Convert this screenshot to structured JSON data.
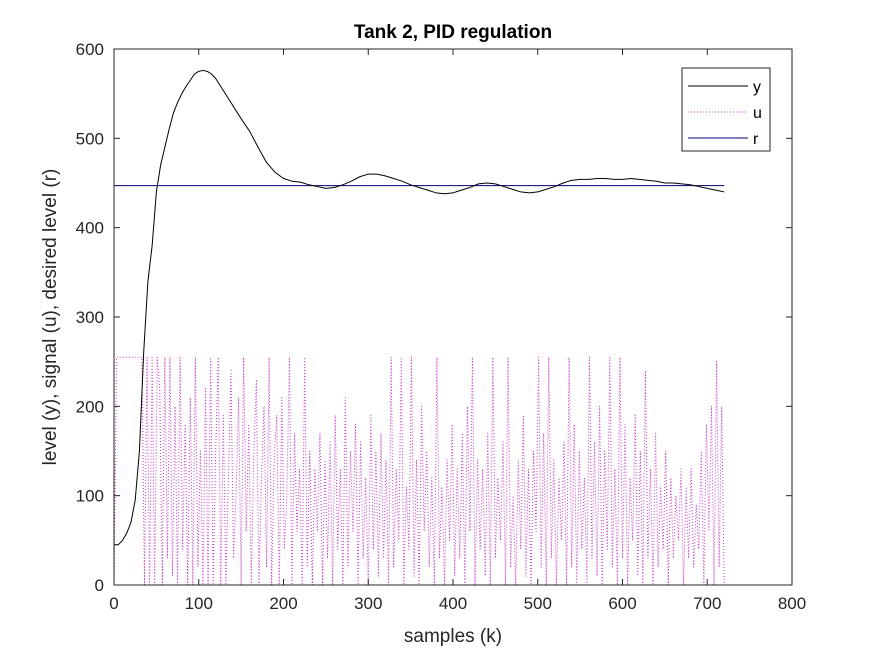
{
  "chart_data": {
    "type": "line",
    "title": "Tank 2, PID regulation",
    "xlabel": "samples (k)",
    "ylabel": "level (y), signal (u), desired level (r)",
    "xlim": [
      0,
      800
    ],
    "ylim": [
      0,
      600
    ],
    "xticks": [
      "0",
      "100",
      "200",
      "300",
      "400",
      "500",
      "600",
      "700",
      "800"
    ],
    "yticks": [
      "0",
      "100",
      "200",
      "300",
      "400",
      "500",
      "600"
    ],
    "grid": false,
    "legend_position": "top-right",
    "series": [
      {
        "name": "y",
        "color": "#000000",
        "style": "solid",
        "x": [
          0,
          5,
          10,
          15,
          20,
          25,
          30,
          35,
          40,
          45,
          50,
          55,
          60,
          65,
          70,
          75,
          80,
          85,
          90,
          95,
          100,
          105,
          110,
          115,
          120,
          130,
          140,
          150,
          160,
          170,
          180,
          190,
          200,
          210,
          220,
          230,
          240,
          250,
          260,
          270,
          280,
          290,
          300,
          310,
          320,
          330,
          340,
          350,
          360,
          370,
          380,
          390,
          400,
          410,
          420,
          430,
          440,
          450,
          460,
          470,
          480,
          490,
          500,
          510,
          520,
          530,
          540,
          550,
          560,
          570,
          580,
          590,
          600,
          610,
          620,
          630,
          640,
          650,
          660,
          670,
          680,
          690,
          700,
          710,
          720
        ],
        "values": [
          45,
          45,
          50,
          58,
          70,
          95,
          150,
          260,
          340,
          380,
          440,
          470,
          490,
          510,
          528,
          540,
          550,
          558,
          565,
          572,
          575,
          576,
          575,
          572,
          567,
          552,
          537,
          522,
          508,
          490,
          473,
          462,
          455,
          452,
          451,
          448,
          446,
          444,
          445,
          448,
          452,
          457,
          460,
          460,
          458,
          455,
          452,
          448,
          445,
          442,
          439,
          438,
          439,
          442,
          445,
          449,
          450,
          449,
          446,
          443,
          440,
          439,
          440,
          443,
          446,
          450,
          453,
          454,
          454,
          455,
          455,
          454,
          454,
          455,
          454,
          453,
          452,
          450,
          450,
          449,
          448,
          446,
          444,
          442,
          440
        ]
      },
      {
        "name": "u",
        "color": "#cc33cc",
        "style": "dotted",
        "x_start": 0,
        "x_step": 3,
        "values": [
          0,
          255,
          255,
          255,
          255,
          255,
          255,
          255,
          255,
          255,
          255,
          255,
          0,
          255,
          0,
          255,
          0,
          255,
          220,
          0,
          255,
          30,
          255,
          10,
          200,
          0,
          255,
          40,
          180,
          0,
          210,
          0,
          255,
          20,
          150,
          0,
          220,
          0,
          255,
          0,
          150,
          255,
          0,
          190,
          0,
          120,
          240,
          30,
          100,
          210,
          0,
          255,
          60,
          180,
          0,
          150,
          230,
          0,
          120,
          200,
          20,
          255,
          0,
          140,
          190,
          0,
          210,
          40,
          100,
          255,
          0,
          170,
          60,
          130,
          0,
          255,
          20,
          150,
          0,
          130,
          60,
          170,
          0,
          140,
          30,
          160,
          0,
          190,
          40,
          130,
          0,
          210,
          20,
          150,
          60,
          180,
          0,
          160,
          30,
          120,
          0,
          190,
          40,
          150,
          10,
          170,
          30,
          140,
          0,
          255,
          20,
          130,
          50,
          255,
          0,
          110,
          40,
          255,
          10,
          140,
          0,
          200,
          60,
          150,
          20,
          120,
          0,
          255,
          30,
          110,
          0,
          140,
          50,
          180,
          10,
          130,
          30,
          170,
          0,
          200,
          60,
          255,
          0,
          140,
          40,
          130,
          10,
          170,
          0,
          255,
          30,
          120,
          50,
          160,
          0,
          255,
          20,
          100,
          0,
          140,
          40,
          190,
          10,
          130,
          0,
          150,
          60,
          255,
          20,
          170,
          0,
          255,
          30,
          140,
          0,
          120,
          50,
          160,
          0,
          255,
          20,
          180,
          0,
          150,
          40,
          120,
          0,
          255,
          30,
          160,
          10,
          200,
          0,
          150,
          40,
          255,
          20,
          130,
          0,
          255,
          30,
          180,
          0,
          120,
          50,
          190,
          10,
          150,
          0,
          240,
          30,
          130,
          0,
          170,
          20,
          110,
          40,
          150,
          0,
          120,
          30,
          100,
          50,
          130,
          0,
          110,
          30,
          130,
          20,
          90,
          40,
          150,
          0,
          180,
          60,
          200,
          0,
          250,
          20,
          200,
          0
        ]
      },
      {
        "name": "r",
        "color": "#00007f",
        "style": "solid",
        "x": [
          0,
          720
        ],
        "values": [
          447,
          447
        ]
      }
    ]
  }
}
